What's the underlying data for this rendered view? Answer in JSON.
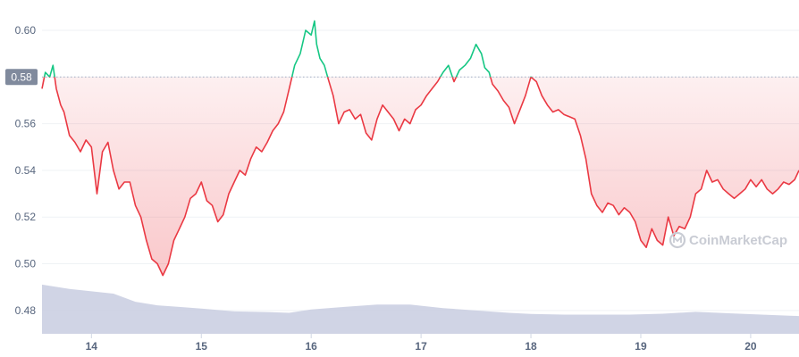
{
  "watermark": "CoinMarketCap",
  "chart_data": {
    "type": "line",
    "title": "",
    "xlabel": "",
    "ylabel": "",
    "x_ticks": [
      {
        "day": 14,
        "label": "14"
      },
      {
        "day": 15,
        "label": "15"
      },
      {
        "day": 16,
        "label": "16"
      },
      {
        "day": 17,
        "label": "17"
      },
      {
        "day": 18,
        "label": "18"
      },
      {
        "day": 19,
        "label": "19"
      },
      {
        "day": 20,
        "label": "20"
      }
    ],
    "y_ticks": [
      {
        "value": 0.48,
        "label": "0.48"
      },
      {
        "value": 0.5,
        "label": "0.50"
      },
      {
        "value": 0.52,
        "label": "0.52"
      },
      {
        "value": 0.54,
        "label": "0.54"
      },
      {
        "value": 0.56,
        "label": "0.56"
      },
      {
        "value": 0.58,
        "label": "0.58"
      },
      {
        "value": 0.6,
        "label": "0.60"
      }
    ],
    "xlim": [
      13.55,
      20.44
    ],
    "ylim": [
      0.47,
      0.613
    ],
    "grid": true,
    "reference_line": {
      "value": 0.58,
      "label": "0.58"
    },
    "colors": {
      "above": "#16c784",
      "below": "#ea3943",
      "fill_below": "#ea3943",
      "volume": "#c8cde0",
      "grid": "#eff2f5",
      "ref_label_bg": "#808a9d"
    },
    "price_series": {
      "x": [
        13.55,
        13.58,
        13.62,
        13.65,
        13.68,
        13.72,
        13.75,
        13.8,
        13.85,
        13.9,
        13.95,
        14.0,
        14.05,
        14.1,
        14.15,
        14.2,
        14.25,
        14.3,
        14.35,
        14.4,
        14.45,
        14.5,
        14.55,
        14.6,
        14.65,
        14.7,
        14.75,
        14.8,
        14.85,
        14.9,
        14.95,
        15.0,
        15.05,
        15.1,
        15.15,
        15.2,
        15.25,
        15.3,
        15.35,
        15.4,
        15.45,
        15.5,
        15.55,
        15.6,
        15.65,
        15.7,
        15.75,
        15.8,
        15.85,
        15.9,
        15.95,
        16.0,
        16.03,
        16.05,
        16.08,
        16.12,
        16.15,
        16.2,
        16.25,
        16.3,
        16.35,
        16.4,
        16.45,
        16.5,
        16.55,
        16.6,
        16.65,
        16.7,
        16.75,
        16.8,
        16.85,
        16.9,
        16.95,
        17.0,
        17.05,
        17.1,
        17.15,
        17.2,
        17.25,
        17.3,
        17.35,
        17.4,
        17.45,
        17.5,
        17.55,
        17.58,
        17.62,
        17.65,
        17.7,
        17.75,
        17.8,
        17.85,
        17.9,
        17.95,
        18.0,
        18.05,
        18.1,
        18.15,
        18.2,
        18.25,
        18.3,
        18.35,
        18.4,
        18.45,
        18.5,
        18.55,
        18.6,
        18.65,
        18.7,
        18.75,
        18.8,
        18.85,
        18.9,
        18.95,
        19.0,
        19.05,
        19.1,
        19.15,
        19.2,
        19.25,
        19.3,
        19.35,
        19.4,
        19.45,
        19.5,
        19.55,
        19.6,
        19.65,
        19.7,
        19.75,
        19.8,
        19.85,
        19.9,
        19.95,
        20.0,
        20.05,
        20.1,
        20.15,
        20.2,
        20.25,
        20.3,
        20.35,
        20.4,
        20.44
      ],
      "y": [
        0.575,
        0.582,
        0.58,
        0.585,
        0.575,
        0.568,
        0.565,
        0.555,
        0.552,
        0.548,
        0.553,
        0.55,
        0.53,
        0.548,
        0.552,
        0.54,
        0.532,
        0.535,
        0.535,
        0.525,
        0.52,
        0.51,
        0.502,
        0.5,
        0.495,
        0.5,
        0.51,
        0.515,
        0.52,
        0.528,
        0.53,
        0.535,
        0.527,
        0.525,
        0.518,
        0.521,
        0.53,
        0.535,
        0.54,
        0.538,
        0.545,
        0.55,
        0.548,
        0.552,
        0.557,
        0.56,
        0.565,
        0.575,
        0.585,
        0.59,
        0.6,
        0.598,
        0.604,
        0.594,
        0.588,
        0.585,
        0.58,
        0.572,
        0.56,
        0.565,
        0.566,
        0.562,
        0.564,
        0.556,
        0.553,
        0.562,
        0.568,
        0.565,
        0.562,
        0.557,
        0.562,
        0.56,
        0.566,
        0.568,
        0.572,
        0.575,
        0.578,
        0.582,
        0.585,
        0.578,
        0.583,
        0.585,
        0.588,
        0.594,
        0.59,
        0.584,
        0.582,
        0.577,
        0.574,
        0.57,
        0.567,
        0.56,
        0.566,
        0.572,
        0.58,
        0.578,
        0.572,
        0.568,
        0.565,
        0.566,
        0.564,
        0.563,
        0.562,
        0.555,
        0.545,
        0.53,
        0.525,
        0.522,
        0.526,
        0.525,
        0.521,
        0.524,
        0.522,
        0.518,
        0.51,
        0.507,
        0.515,
        0.51,
        0.508,
        0.52,
        0.512,
        0.516,
        0.515,
        0.52,
        0.53,
        0.532,
        0.54,
        0.535,
        0.536,
        0.532,
        0.53,
        0.528,
        0.53,
        0.532,
        0.536,
        0.533,
        0.536,
        0.532,
        0.53,
        0.532,
        0.535,
        0.534,
        0.536,
        0.54
      ]
    },
    "volume_series": {
      "x": [
        13.55,
        13.8,
        14.0,
        14.2,
        14.4,
        14.6,
        14.8,
        15.0,
        15.3,
        15.6,
        15.8,
        16.0,
        16.3,
        16.6,
        16.9,
        17.2,
        17.5,
        17.8,
        18.0,
        18.3,
        18.6,
        18.9,
        19.2,
        19.5,
        19.8,
        20.1,
        20.44
      ],
      "y": [
        0.4911,
        0.4892,
        0.4882,
        0.4872,
        0.4837,
        0.4822,
        0.4815,
        0.4808,
        0.4796,
        0.4793,
        0.479,
        0.4804,
        0.4815,
        0.4825,
        0.4825,
        0.481,
        0.48,
        0.479,
        0.4785,
        0.4782,
        0.4782,
        0.4782,
        0.4786,
        0.4794,
        0.4788,
        0.4782,
        0.4776
      ]
    }
  }
}
